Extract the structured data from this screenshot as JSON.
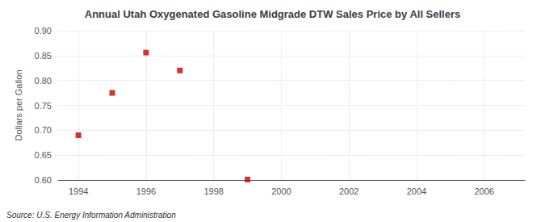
{
  "chart_data": {
    "type": "scatter",
    "title": "Annual Utah Oxygenated Gasoline Midgrade DTW Sales Price by All Sellers",
    "ylabel": "Dollars per Gallon",
    "annotations": [
      "Source: U.S. Energy Information Administration"
    ],
    "x": [
      1994,
      1995,
      1996,
      1997,
      1999
    ],
    "values": [
      0.69,
      0.775,
      0.856,
      0.82,
      0.601
    ],
    "color": "#cc0000",
    "marker": "square",
    "xlim": [
      1993.4,
      2007.2
    ],
    "ylim": [
      0.6,
      0.9
    ],
    "xticks": [
      1994,
      1996,
      1998,
      2000,
      2002,
      2004,
      2006
    ],
    "yticks": [
      {
        "value": 0.6,
        "label": "0.60"
      },
      0.65,
      {
        "value": 0.7,
        "label": "0.70"
      },
      0.75,
      {
        "value": 0.8,
        "label": "0.80"
      },
      0.85,
      {
        "value": 0.9,
        "label": "0.90"
      }
    ],
    "grid": true
  }
}
